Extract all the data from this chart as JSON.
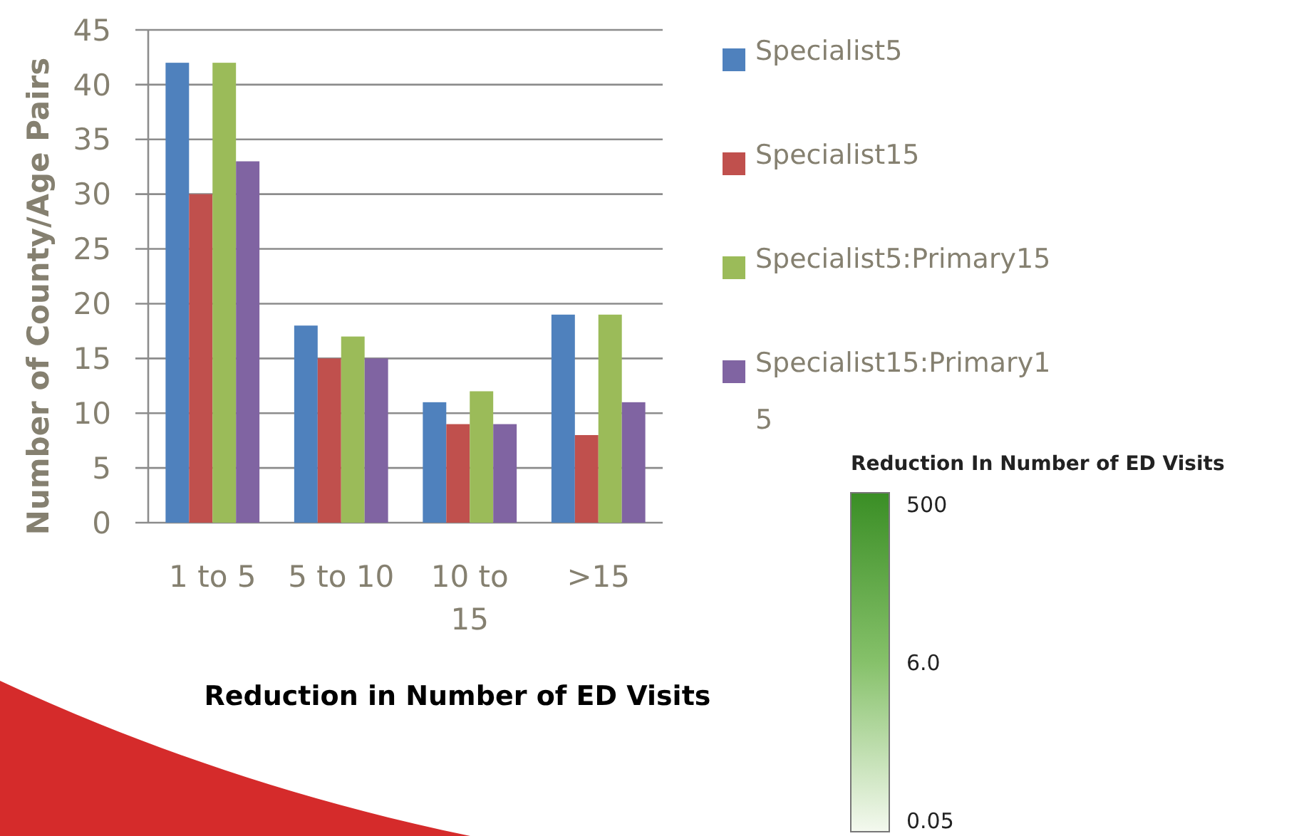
{
  "chart_data": [
    {
      "type": "bar",
      "xlabel": "Reduction in Number of ED Visits",
      "ylabel": "Number of County/Age Pairs",
      "categories": [
        "1 to 5",
        "5 to 10",
        "10 to 15",
        ">15"
      ],
      "series": [
        {
          "name": "Specialist5",
          "color": "#4f81bd",
          "values": [
            42,
            18,
            11,
            19
          ]
        },
        {
          "name": "Specialist15",
          "color": "#c0504d",
          "values": [
            30,
            15,
            9,
            8
          ]
        },
        {
          "name": "Specialist5:Primary15",
          "color": "#9bbb59",
          "values": [
            42,
            17,
            12,
            19
          ]
        },
        {
          "name": "Specialist15:Primary15",
          "color": "#8064a2",
          "values": [
            33,
            15,
            9,
            11
          ]
        }
      ],
      "ylim": [
        0,
        45
      ],
      "yticks": [
        0,
        5,
        10,
        15,
        20,
        25,
        30,
        35,
        40,
        45
      ],
      "grid": "y",
      "legend": "right"
    },
    {
      "type": "other",
      "title": "Reduction In Number of ED Visits",
      "annotations": [
        "500",
        "6.0",
        "0.05"
      ]
    }
  ]
}
